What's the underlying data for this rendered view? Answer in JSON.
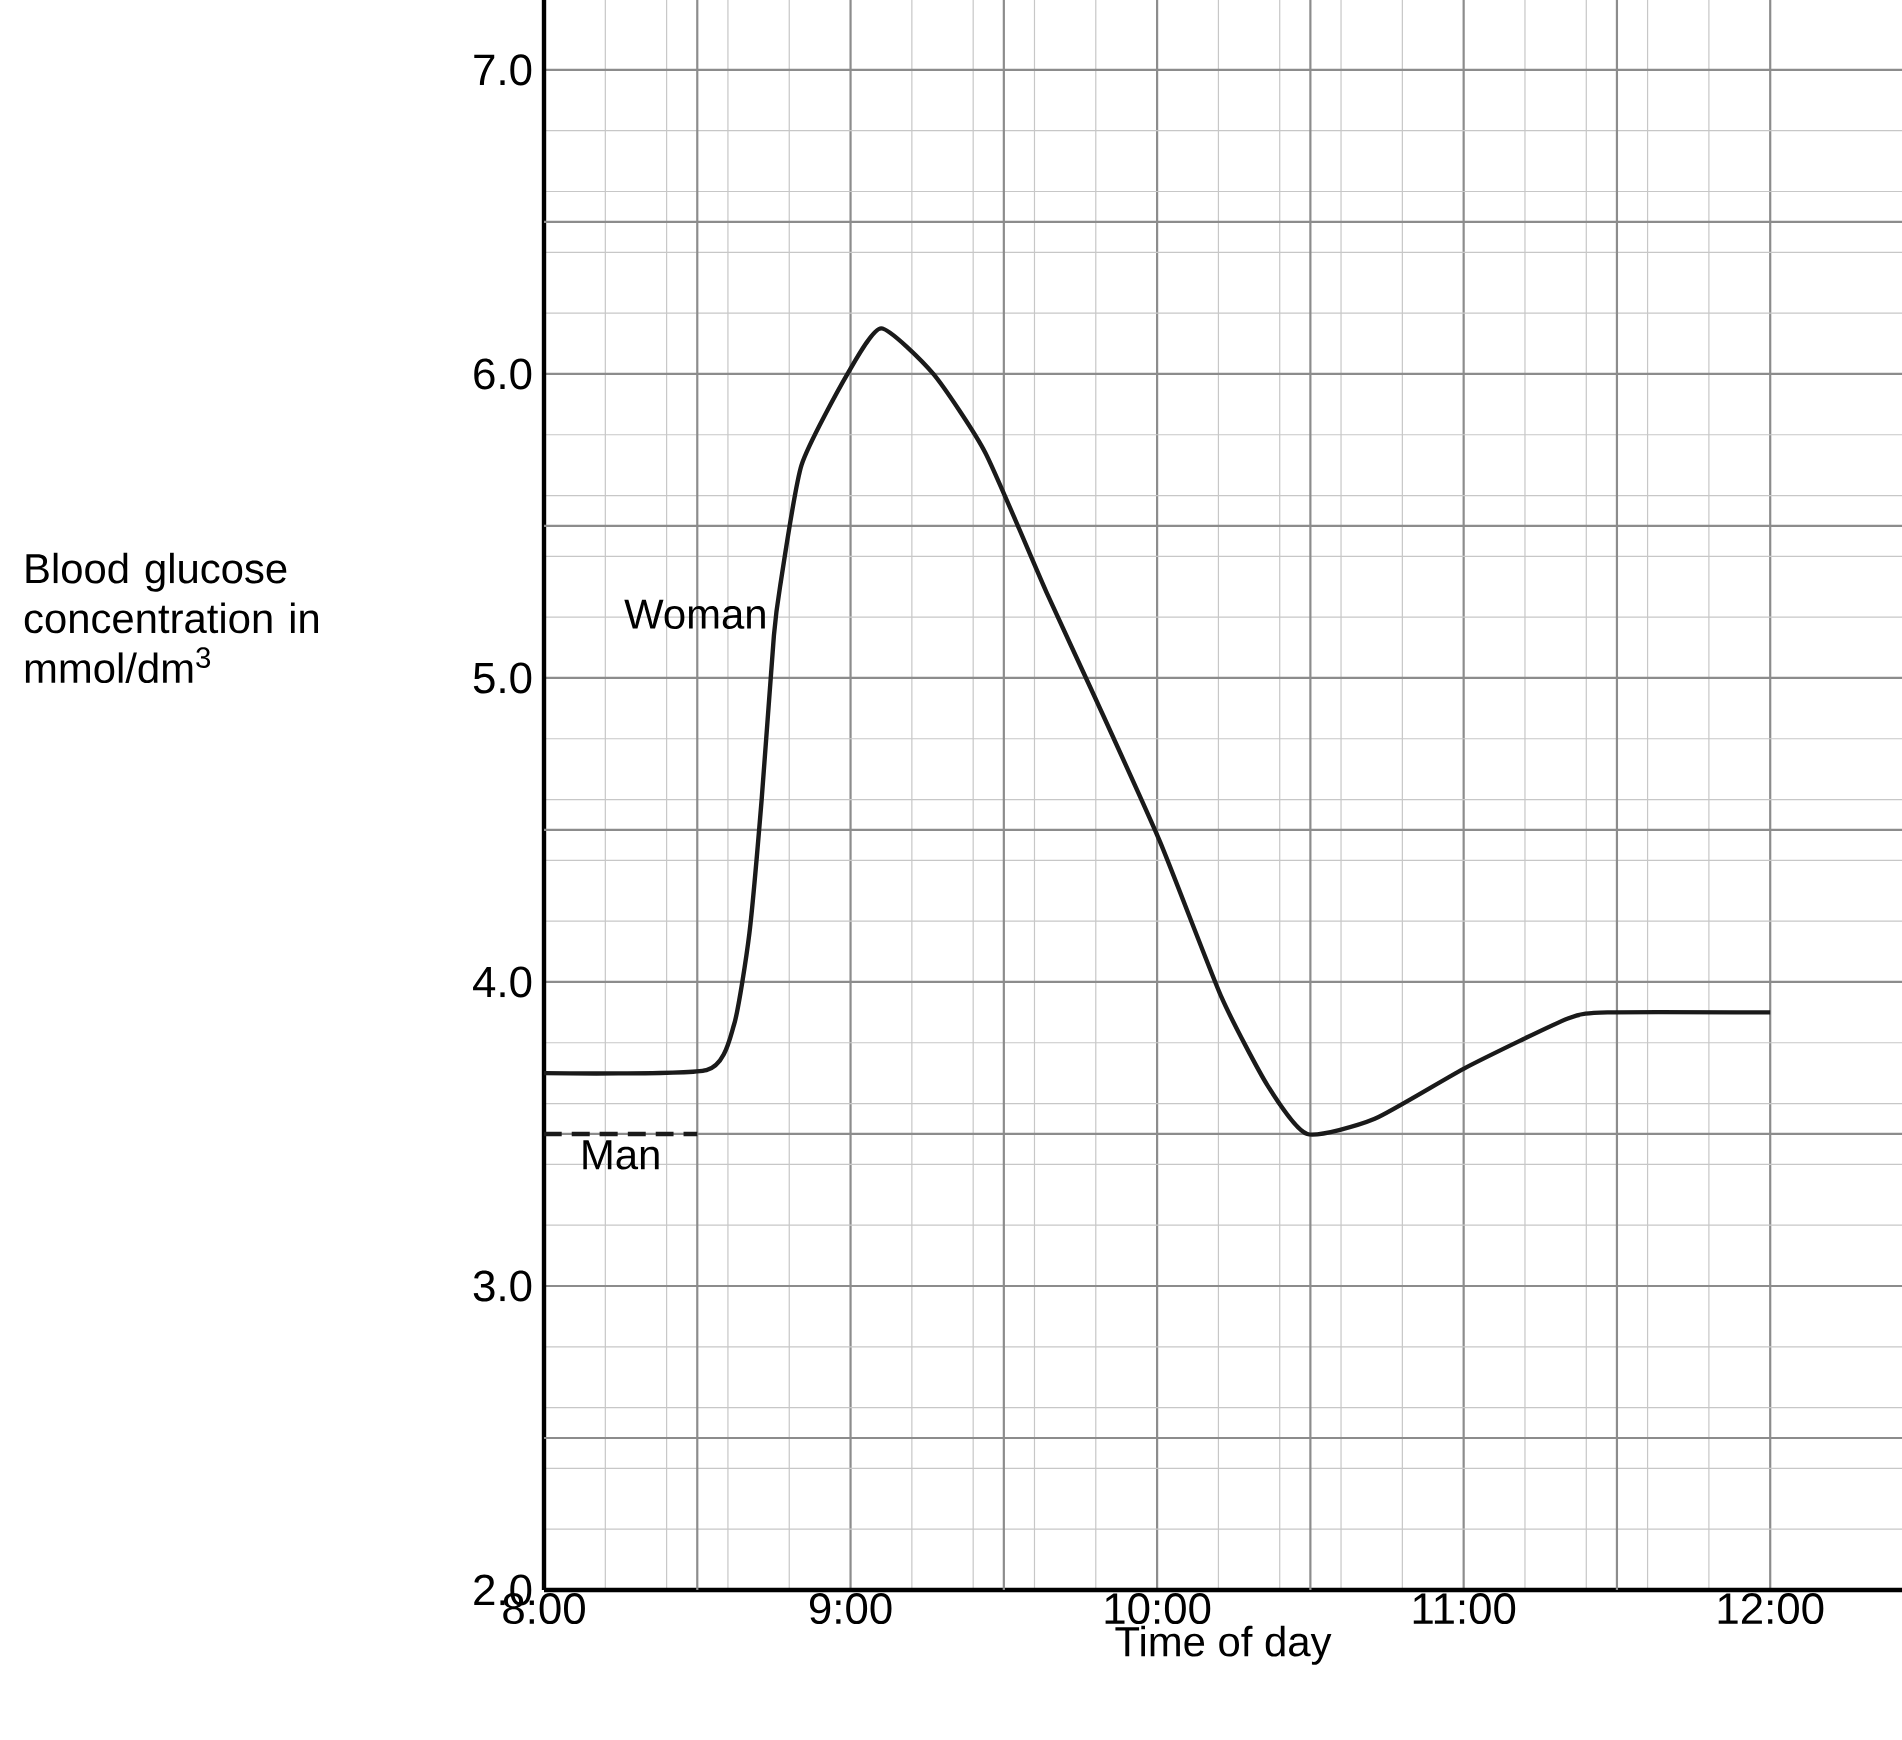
{
  "chart_data": {
    "type": "line",
    "xlabel": "Time of day",
    "ylabel": "Blood glucose concentration in mmol/dm$^{3}$",
    "x": [
      8.0,
      8.53,
      8.62,
      8.67,
      8.71,
      8.75,
      8.77,
      8.84,
      8.99,
      9.1,
      9.27,
      9.44,
      9.64,
      9.8,
      10.01,
      10.21,
      10.36,
      10.49,
      10.71,
      11.01,
      11.34,
      11.47,
      12.0
    ],
    "series": [
      {
        "name": "Woman",
        "color": "#1a1a1a",
        "line_style": "solid",
        "values": [
          3.7,
          3.71,
          3.86,
          4.16,
          4.6,
          5.14,
          5.3,
          5.7,
          6.0,
          6.15,
          6.0,
          5.74,
          5.28,
          4.93,
          4.46,
          3.95,
          3.66,
          3.5,
          3.55,
          3.72,
          3.88,
          3.9,
          3.9
        ]
      },
      {
        "name": "Man",
        "color": "#1a1a1a",
        "line_style": "dashed",
        "x": [
          8.0,
          8.5
        ],
        "values": [
          3.5,
          3.5
        ]
      }
    ],
    "xlim": [
      8,
      12.43
    ],
    "xticks": [
      {
        "value": 8,
        "label": "8:00"
      },
      {
        "value": 9,
        "label": "9:00"
      },
      {
        "value": 10,
        "label": "10:00"
      },
      {
        "value": 11,
        "label": "11:00"
      },
      {
        "value": 12,
        "label": "12:00"
      }
    ],
    "ylim": [
      2,
      7.23
    ],
    "yticks": [
      {
        "value": 2,
        "label": "2.0"
      },
      {
        "value": 3,
        "label": "3.0"
      },
      {
        "value": 4,
        "label": "4.0"
      },
      {
        "value": 5,
        "label": "5.0"
      },
      {
        "value": 6,
        "label": "6.0"
      },
      {
        "value": 7,
        "label": "7.0"
      }
    ],
    "grid": true,
    "marker": "none"
  }
}
